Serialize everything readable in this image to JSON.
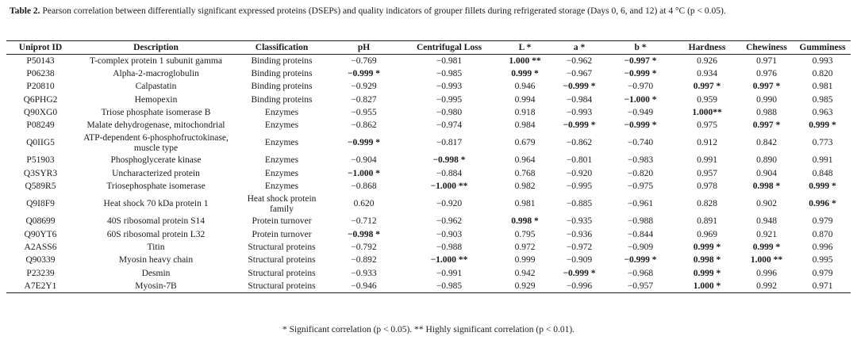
{
  "caption": {
    "label": "Table 2.",
    "text": " Pearson correlation between differentially significant expressed proteins (DSEPs) and quality indicators of grouper fillets during refrigerated storage (Days 0, 6, and 12) at 4 °C (p < 0.05)."
  },
  "headers": [
    "Uniprot ID",
    "Description",
    "Classification",
    "pH",
    "Centrifugal Loss",
    "L *",
    "a *",
    "b *",
    "Hardness",
    "Chewiness",
    "Gumminess"
  ],
  "rows": [
    {
      "id": "P50143",
      "desc": "T-complex protein 1 subunit gamma",
      "cls": "Binding proteins",
      "vals": [
        {
          "v": "−0.769"
        },
        {
          "v": "−0.981"
        },
        {
          "v": "1.000 **",
          "b": true
        },
        {
          "v": "−0.962"
        },
        {
          "v": "−0.997 *",
          "b": true
        },
        {
          "v": "0.926"
        },
        {
          "v": "0.971"
        },
        {
          "v": "0.993"
        }
      ]
    },
    {
      "id": "P06238",
      "desc": "Alpha-2-macroglobulin",
      "cls": "Binding proteins",
      "vals": [
        {
          "v": "−0.999 *",
          "b": true
        },
        {
          "v": "−0.985"
        },
        {
          "v": "0.999 *",
          "b": true
        },
        {
          "v": "−0.967"
        },
        {
          "v": "−0.999 *",
          "b": true
        },
        {
          "v": "0.934"
        },
        {
          "v": "0.976"
        },
        {
          "v": "0.820"
        }
      ]
    },
    {
      "id": "P20810",
      "desc": "Calpastatin",
      "cls": "Binding proteins",
      "vals": [
        {
          "v": "−0.929"
        },
        {
          "v": "−0.993"
        },
        {
          "v": "0.946"
        },
        {
          "v": "−0.999 *",
          "b": true
        },
        {
          "v": "−0.970"
        },
        {
          "v": "0.997 *",
          "b": true
        },
        {
          "v": "0.997 *",
          "b": true
        },
        {
          "v": "0.981"
        }
      ]
    },
    {
      "id": "Q6PHG2",
      "desc": "Hemopexin",
      "cls": "Binding proteins",
      "vals": [
        {
          "v": "−0.827"
        },
        {
          "v": "−0.995"
        },
        {
          "v": "0.994"
        },
        {
          "v": "−0.984"
        },
        {
          "v": "−1.000 *",
          "b": true
        },
        {
          "v": "0.959"
        },
        {
          "v": "0.990"
        },
        {
          "v": "0.985"
        }
      ]
    },
    {
      "id": "Q90XG0",
      "desc": "Triose phosphate isomerase B",
      "cls": "Enzymes",
      "vals": [
        {
          "v": "−0.955"
        },
        {
          "v": "−0.980"
        },
        {
          "v": "0.918"
        },
        {
          "v": "−0.993"
        },
        {
          "v": "−0.949"
        },
        {
          "v": "1.000**",
          "b": true
        },
        {
          "v": "0.988"
        },
        {
          "v": "0.963"
        }
      ]
    },
    {
      "id": "P08249",
      "desc": "Malate dehydrogenase, mitochondrial",
      "cls": "Enzymes",
      "vals": [
        {
          "v": "−0.862"
        },
        {
          "v": "−0.974"
        },
        {
          "v": "0.984"
        },
        {
          "v": "−0.999 *",
          "b": true
        },
        {
          "v": "−0.999 *",
          "b": true
        },
        {
          "v": "0.975"
        },
        {
          "v": "0.997 *",
          "b": true
        },
        {
          "v": "0.999 *",
          "b": true
        }
      ]
    },
    {
      "id": "Q0IIG5",
      "desc": "ATP-dependent 6-phosphofructokinase, muscle type",
      "cls": "Enzymes",
      "tall": true,
      "vals": [
        {
          "v": "−0.999 *",
          "b": true
        },
        {
          "v": "−0.817"
        },
        {
          "v": "0.679"
        },
        {
          "v": "−0.862"
        },
        {
          "v": "−0.740"
        },
        {
          "v": "0.912"
        },
        {
          "v": "0.842"
        },
        {
          "v": "0.773"
        }
      ]
    },
    {
      "id": "P51903",
      "desc": "Phosphoglycerate kinase",
      "cls": "Enzymes",
      "vals": [
        {
          "v": "−0.904"
        },
        {
          "v": "−0.998 *",
          "b": true
        },
        {
          "v": "0.964"
        },
        {
          "v": "−0.801"
        },
        {
          "v": "−0.983"
        },
        {
          "v": "0.991"
        },
        {
          "v": "0.890"
        },
        {
          "v": "0.991"
        }
      ]
    },
    {
      "id": "Q3SYR3",
      "desc": "Uncharacterized protein",
      "cls": "Enzymes",
      "vals": [
        {
          "v": "−1.000 *",
          "b": true
        },
        {
          "v": "−0.884"
        },
        {
          "v": "0.768"
        },
        {
          "v": "−0.920"
        },
        {
          "v": "−0.820"
        },
        {
          "v": "0.957"
        },
        {
          "v": "0.904"
        },
        {
          "v": "0.848"
        }
      ]
    },
    {
      "id": "Q589R5",
      "desc": "Triosephosphate isomerase",
      "cls": "Enzymes",
      "vals": [
        {
          "v": "−0.868"
        },
        {
          "v": "−1.000 **",
          "b": true
        },
        {
          "v": "0.982"
        },
        {
          "v": "−0.995"
        },
        {
          "v": "−0.975"
        },
        {
          "v": "0.978"
        },
        {
          "v": "0.998 *",
          "b": true
        },
        {
          "v": "0.999 *",
          "b": true
        }
      ]
    },
    {
      "id": "Q9I8F9",
      "desc": "Heat shock 70 kDa protein 1",
      "cls": "Heat shock protein family",
      "tall": true,
      "vals": [
        {
          "v": "0.620"
        },
        {
          "v": "−0.920"
        },
        {
          "v": "0.981"
        },
        {
          "v": "−0.885"
        },
        {
          "v": "−0.961"
        },
        {
          "v": "0.828"
        },
        {
          "v": "0.902"
        },
        {
          "v": "0.996 *",
          "b": true
        }
      ]
    },
    {
      "id": "Q08699",
      "desc": "40S ribosomal protein S14",
      "cls": "Protein turnover",
      "vals": [
        {
          "v": "−0.712"
        },
        {
          "v": "−0.962"
        },
        {
          "v": "0.998 *",
          "b": true
        },
        {
          "v": "−0.935"
        },
        {
          "v": "−0.988"
        },
        {
          "v": "0.891"
        },
        {
          "v": "0.948"
        },
        {
          "v": "0.979"
        }
      ]
    },
    {
      "id": "Q90YT6",
      "desc": "60S ribosomal protein L32",
      "cls": "Protein turnover",
      "vals": [
        {
          "v": "−0.998 *",
          "b": true
        },
        {
          "v": "−0.903"
        },
        {
          "v": "0.795"
        },
        {
          "v": "−0.936"
        },
        {
          "v": "−0.844"
        },
        {
          "v": "0.969"
        },
        {
          "v": "0.921"
        },
        {
          "v": "0.870"
        }
      ]
    },
    {
      "id": "A2ASS6",
      "desc": "Titin",
      "cls": "Structural proteins",
      "vals": [
        {
          "v": "−0.792"
        },
        {
          "v": "−0.988"
        },
        {
          "v": "0.972"
        },
        {
          "v": "−0.972"
        },
        {
          "v": "−0.909"
        },
        {
          "v": "0.999 *",
          "b": true
        },
        {
          "v": "0.999 *",
          "b": true
        },
        {
          "v": "0.996"
        }
      ]
    },
    {
      "id": "Q90339",
      "desc": "Myosin heavy chain",
      "cls": "Structural proteins",
      "vals": [
        {
          "v": "−0.892"
        },
        {
          "v": "−1.000 **",
          "b": true
        },
        {
          "v": "0.999"
        },
        {
          "v": "−0.909"
        },
        {
          "v": "−0.999 *",
          "b": true
        },
        {
          "v": "0.998 *",
          "b": true
        },
        {
          "v": "1.000 **",
          "b": true
        },
        {
          "v": "0.995"
        }
      ]
    },
    {
      "id": "P23239",
      "desc": "Desmin",
      "cls": "Structural proteins",
      "vals": [
        {
          "v": "−0.933"
        },
        {
          "v": "−0.991"
        },
        {
          "v": "0.942"
        },
        {
          "v": "−0.999 *",
          "b": true
        },
        {
          "v": "−0.968"
        },
        {
          "v": "0.999 *",
          "b": true
        },
        {
          "v": "0.996"
        },
        {
          "v": "0.979"
        }
      ]
    },
    {
      "id": "A7E2Y1",
      "desc": "Myosin-7B",
      "cls": "Structural proteins",
      "vals": [
        {
          "v": "−0.946"
        },
        {
          "v": "−0.985"
        },
        {
          "v": "0.929"
        },
        {
          "v": "−0.996"
        },
        {
          "v": "−0.957"
        },
        {
          "v": "1.000 *",
          "b": true
        },
        {
          "v": "0.992"
        },
        {
          "v": "0.971"
        }
      ]
    }
  ],
  "footnote": "* Significant correlation (p < 0.05). ** Highly significant correlation (p < 0.01)."
}
